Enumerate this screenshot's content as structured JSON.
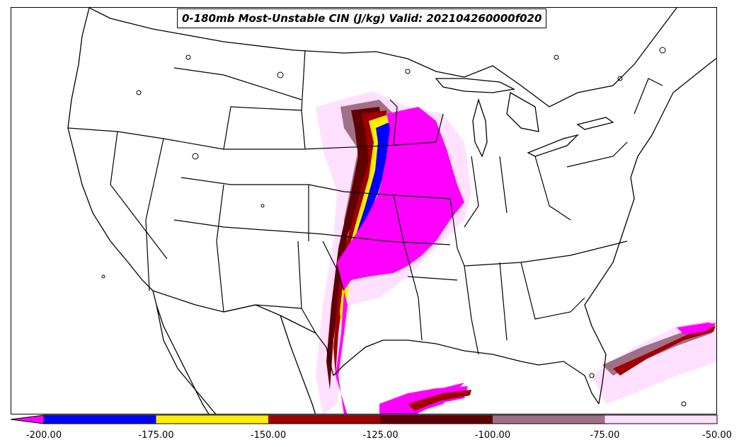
{
  "title": "0-180mb Most-Unstable CIN (J/kg) Valid: 202104260000f020",
  "colorbar": {
    "extend": "min",
    "extend_color": "#ff00ff",
    "segments": [
      {
        "min": -200,
        "max": -175,
        "color": "#0000ff"
      },
      {
        "min": -175,
        "max": -150,
        "color": "#ffee00"
      },
      {
        "min": -150,
        "max": -125,
        "color": "#a00000"
      },
      {
        "min": -125,
        "max": -100,
        "color": "#600000"
      },
      {
        "min": -100,
        "max": -75,
        "color": "#a07088"
      },
      {
        "min": -75,
        "max": -50,
        "color": "#ffe0ff"
      }
    ],
    "ticks": [
      "-200.00",
      "-175.00",
      "-150.00",
      "-125.00",
      "-100.00",
      "-75.00",
      "-50.00"
    ]
  },
  "colors": {
    "strong_cin": "#ff00ff",
    "boundaries": "#000000",
    "background": "#ffffff"
  }
}
